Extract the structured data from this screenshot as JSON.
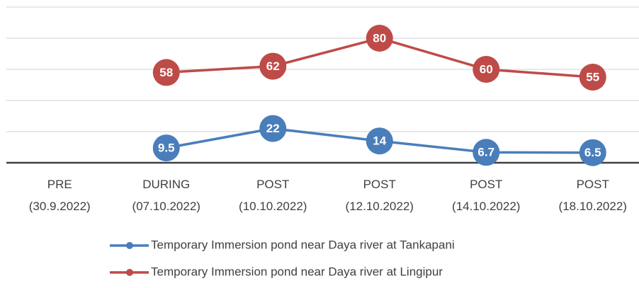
{
  "chart_data": {
    "type": "line",
    "categories": [
      "PRE\n(30.9.2022)",
      "DURING\n(07.10.2022)",
      "POST\n(10.10.2022)",
      "POST\n(12.10.2022)",
      "POST\n(14.10.2022)",
      "POST\n(18.10.2022)"
    ],
    "series": [
      {
        "name": "Temporary Immersion pond near Daya river at Tankapani",
        "color": "#4a7ebb",
        "values": [
          null,
          9.5,
          22,
          14,
          6.7,
          6.5
        ]
      },
      {
        "name": "Temporary Immersion pond near Daya river at Lingipur",
        "color": "#be4b48",
        "values": [
          null,
          58,
          62,
          80,
          60,
          55
        ]
      }
    ],
    "ylim": [
      0,
      100
    ],
    "yticks": [
      0,
      20,
      40,
      60,
      80,
      100
    ],
    "grid": true,
    "legend": "bottom"
  }
}
